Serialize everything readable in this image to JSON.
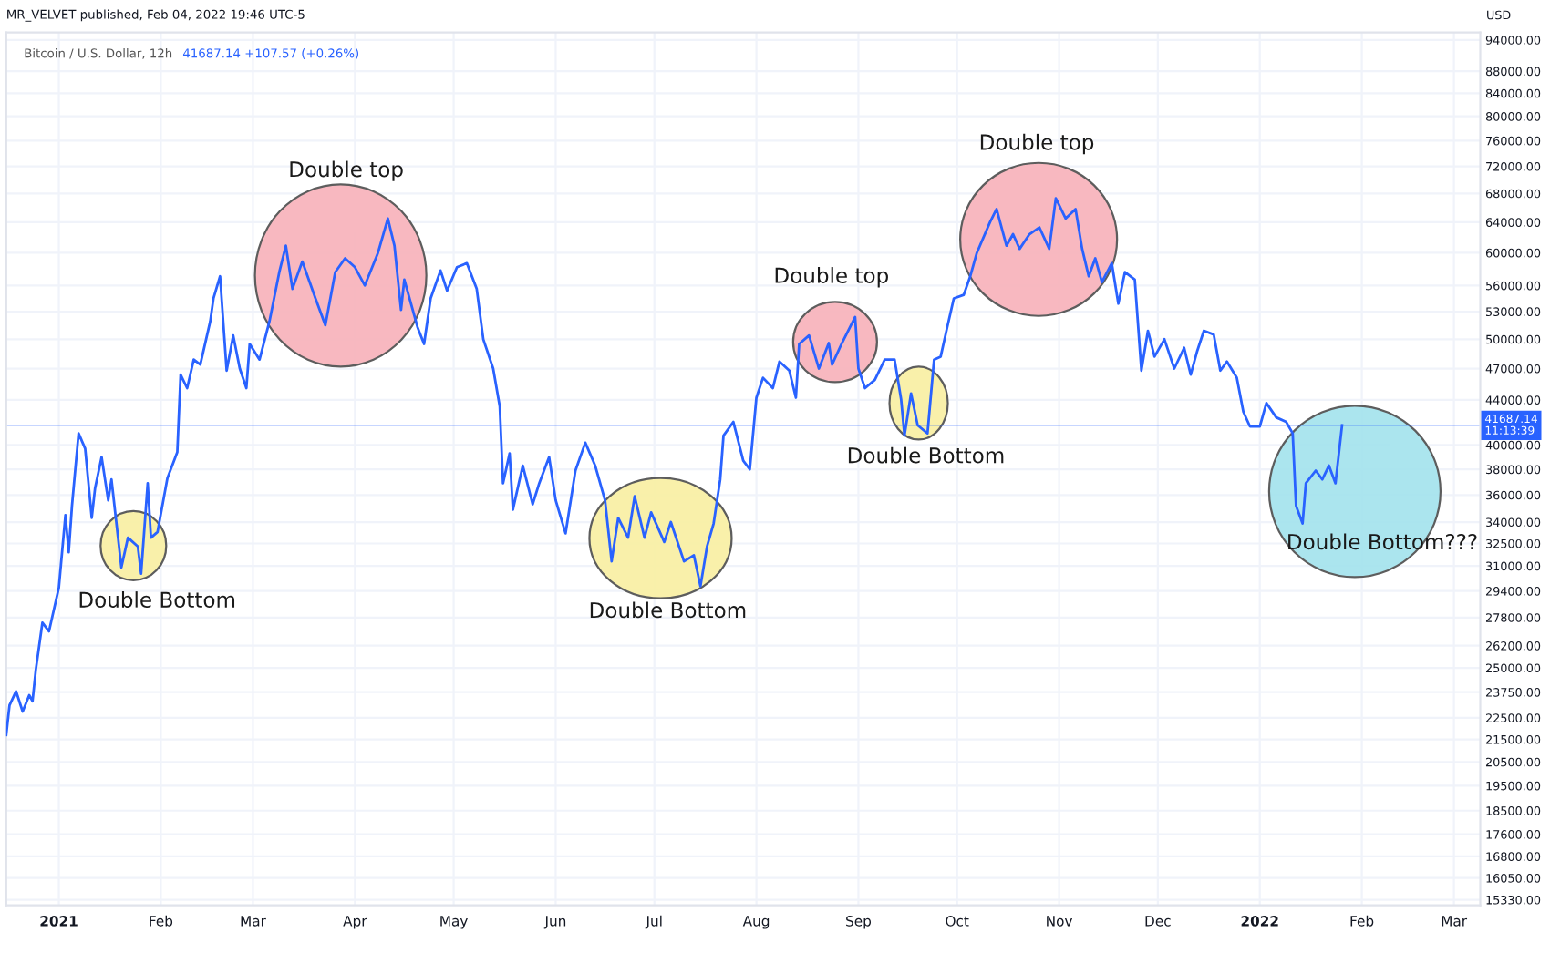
{
  "chart_data": {
    "type": "line",
    "title": "MR_VELVET published, Feb 04, 2022 19:46 UTC-5",
    "subtitle": "Bitcoin / U.S. Dollar, 12h",
    "annotations": [
      "41687.14 +107.57 (+0.26%)",
      "USD",
      "Double Bottom",
      "Double top",
      "Double Bottom",
      "Double top",
      "Double Bottom",
      "Double top",
      "Double Bottom???"
    ],
    "x": [
      "2020-12-16",
      "2020-12-17",
      "2020-12-19",
      "2020-12-21",
      "2020-12-23",
      "2020-12-24",
      "2020-12-25",
      "2020-12-27",
      "2020-12-29",
      "2021-01-01",
      "2021-01-03",
      "2021-01-04",
      "2021-01-05",
      "2021-01-07",
      "2021-01-09",
      "2021-01-11",
      "2021-01-12",
      "2021-01-14",
      "2021-01-16",
      "2021-01-17",
      "2021-01-20",
      "2021-01-22",
      "2021-01-25",
      "2021-01-26",
      "2021-01-28",
      "2021-01-29",
      "2021-01-31",
      "2021-02-03",
      "2021-02-06",
      "2021-02-07",
      "2021-02-09",
      "2021-02-11",
      "2021-02-13",
      "2021-02-16",
      "2021-02-17",
      "2021-02-19",
      "2021-02-21",
      "2021-02-23",
      "2021-02-25",
      "2021-02-27",
      "2021-02-28",
      "2021-03-03",
      "2021-03-06",
      "2021-03-09",
      "2021-03-11",
      "2021-03-13",
      "2021-03-16",
      "2021-03-20",
      "2021-03-23",
      "2021-03-26",
      "2021-03-29",
      "2021-04-01",
      "2021-04-04",
      "2021-04-08",
      "2021-04-11",
      "2021-04-13",
      "2021-04-15",
      "2021-04-16",
      "2021-04-20",
      "2021-04-22",
      "2021-04-24",
      "2021-04-27",
      "2021-04-29",
      "2021-05-02",
      "2021-05-05",
      "2021-05-08",
      "2021-05-10",
      "2021-05-13",
      "2021-05-15",
      "2021-05-16",
      "2021-05-18",
      "2021-05-19",
      "2021-05-22",
      "2021-05-25",
      "2021-05-27",
      "2021-05-30",
      "2021-06-01",
      "2021-06-04",
      "2021-06-07",
      "2021-06-10",
      "2021-06-13",
      "2021-06-16",
      "2021-06-18",
      "2021-06-20",
      "2021-06-23",
      "2021-06-25",
      "2021-06-28",
      "2021-06-30",
      "2021-07-04",
      "2021-07-06",
      "2021-07-10",
      "2021-07-13",
      "2021-07-15",
      "2021-07-17",
      "2021-07-19",
      "2021-07-21",
      "2021-07-22",
      "2021-07-25",
      "2021-07-28",
      "2021-07-30",
      "2021-08-01",
      "2021-08-03",
      "2021-08-06",
      "2021-08-08",
      "2021-08-11",
      "2021-08-13",
      "2021-08-14",
      "2021-08-17",
      "2021-08-20",
      "2021-08-23",
      "2021-08-24",
      "2021-08-27",
      "2021-08-31",
      "2021-09-01",
      "2021-09-03",
      "2021-09-06",
      "2021-09-09",
      "2021-09-12",
      "2021-09-14",
      "2021-09-15",
      "2021-09-17",
      "2021-09-19",
      "2021-09-22",
      "2021-09-24",
      "2021-09-26",
      "2021-09-28",
      "2021-09-30",
      "2021-10-03",
      "2021-10-05",
      "2021-10-07",
      "2021-10-11",
      "2021-10-13",
      "2021-10-16",
      "2021-10-18",
      "2021-10-20",
      "2021-10-23",
      "2021-10-26",
      "2021-10-29",
      "2021-10-31",
      "2021-11-03",
      "2021-11-06",
      "2021-11-08",
      "2021-11-10",
      "2021-11-12",
      "2021-11-14",
      "2021-11-17",
      "2021-11-19",
      "2021-11-21",
      "2021-11-24",
      "2021-11-26",
      "2021-11-28",
      "2021-11-30",
      "2021-12-03",
      "2021-12-06",
      "2021-12-09",
      "2021-12-11",
      "2021-12-13",
      "2021-12-15",
      "2021-12-18",
      "2021-12-20",
      "2021-12-22",
      "2021-12-25",
      "2021-12-27",
      "2021-12-29",
      "2022-01-01",
      "2022-01-03",
      "2022-01-06",
      "2022-01-09",
      "2022-01-11",
      "2022-01-12",
      "2022-01-14",
      "2022-01-15",
      "2022-01-18",
      "2022-01-20",
      "2022-01-22",
      "2022-01-24",
      "2022-01-26"
    ],
    "series": [
      {
        "color": "#2962ff",
        "values": [
          21700,
          23100,
          23800,
          22800,
          23600,
          23300,
          24900,
          27500,
          27000,
          29600,
          34500,
          31900,
          35200,
          41000,
          39700,
          34300,
          36500,
          39000,
          35600,
          37200,
          30900,
          32900,
          32300,
          30500,
          36900,
          32900,
          33300,
          37300,
          39400,
          46400,
          45100,
          47900,
          47400,
          51900,
          54500,
          57100,
          46800,
          50400,
          47000,
          45100,
          49500,
          47900,
          51900,
          57600,
          60900,
          55600,
          58900,
          54500,
          51500,
          57600,
          59300,
          58200,
          56000,
          60000,
          64500,
          60900,
          53200,
          56700,
          51300,
          49500,
          54500,
          57800,
          55400,
          58200,
          58700,
          55600,
          50000,
          47000,
          43400,
          36900,
          39300,
          34900,
          38300,
          35300,
          36900,
          39000,
          35600,
          33200,
          37900,
          40200,
          38300,
          35600,
          31300,
          34300,
          32900,
          35900,
          32900,
          34700,
          32600,
          34000,
          31300,
          31700,
          29700,
          32300,
          33900,
          37200,
          40800,
          42000,
          38700,
          38000,
          44200,
          46100,
          45100,
          47700,
          46800,
          44200,
          49500,
          50400,
          47000,
          49600,
          47400,
          49600,
          52400,
          47000,
          45100,
          45900,
          47900,
          47900,
          44000,
          40800,
          44600,
          41700,
          41000,
          47900,
          48200,
          51300,
          54500,
          54900,
          57100,
          60000,
          64000,
          65800,
          60900,
          62400,
          60500,
          62400,
          63300,
          60500,
          67300,
          64500,
          65800,
          60500,
          57100,
          59300,
          56400,
          58700,
          53900,
          57600,
          56700,
          46800,
          50900,
          48200,
          50000,
          47000,
          49100,
          46400,
          48800,
          50900,
          50500,
          46800,
          47700,
          46100,
          42900,
          41600,
          41600,
          43700,
          42400,
          42000,
          41000,
          35200,
          33900,
          36900,
          37900,
          37200,
          38300,
          36900,
          41700
        ]
      }
    ],
    "xlim": [
      "2020-12-16",
      "2022-03-09"
    ],
    "xticks": [
      {
        "value": "2021-01-01",
        "label": "2021"
      },
      {
        "value": "2021-02-01",
        "label": "Feb"
      },
      {
        "value": "2021-03-01",
        "label": "Mar"
      },
      {
        "value": "2021-04-01",
        "label": "Apr"
      },
      {
        "value": "2021-05-01",
        "label": "May"
      },
      {
        "value": "2021-06-01",
        "label": "Jun"
      },
      {
        "value": "2021-07-01",
        "label": "Jul"
      },
      {
        "value": "2021-08-01",
        "label": "Aug"
      },
      {
        "value": "2021-09-01",
        "label": "Sep"
      },
      {
        "value": "2021-10-01",
        "label": "Oct"
      },
      {
        "value": "2021-11-01",
        "label": "Nov"
      },
      {
        "value": "2021-12-01",
        "label": "Dec"
      },
      {
        "value": "2022-01-01",
        "label": "2022"
      },
      {
        "value": "2022-02-01",
        "label": "Feb"
      },
      {
        "value": "2022-03-01",
        "label": "Mar"
      }
    ],
    "log": "y",
    "ylim": [
      15150,
      95500
    ],
    "yticks": [
      {
        "value": 15330,
        "label": "15330.00"
      },
      {
        "value": 16050,
        "label": "16050.00"
      },
      {
        "value": 16800,
        "label": "16800.00"
      },
      {
        "value": 17600,
        "label": "17600.00"
      },
      {
        "value": 18500,
        "label": "18500.00"
      },
      {
        "value": 19500,
        "label": "19500.00"
      },
      {
        "value": 20500,
        "label": "20500.00"
      },
      {
        "value": 21500,
        "label": "21500.00"
      },
      {
        "value": 22500,
        "label": "22500.00"
      },
      {
        "value": 23750,
        "label": "23750.00"
      },
      {
        "value": 25000,
        "label": "25000.00"
      },
      {
        "value": 26200,
        "label": "26200.00"
      },
      {
        "value": 27800,
        "label": "27800.00"
      },
      {
        "value": 29400,
        "label": "29400.00"
      },
      {
        "value": 31000,
        "label": "31000.00"
      },
      {
        "value": 32500,
        "label": "32500.00"
      },
      {
        "value": 34000,
        "label": "34000.00"
      },
      {
        "value": 36000,
        "label": "36000.00"
      },
      {
        "value": 38000,
        "label": "38000.00"
      },
      {
        "value": 40000,
        "label": "40000.00"
      },
      {
        "value": 44000,
        "label": "44000.00"
      },
      {
        "value": 47000,
        "label": "47000.00"
      },
      {
        "value": 50000,
        "label": "50000.00"
      },
      {
        "value": 53000,
        "label": "53000.00"
      },
      {
        "value": 56000,
        "label": "56000.00"
      },
      {
        "value": 60000,
        "label": "60000.00"
      },
      {
        "value": 64000,
        "label": "64000.00"
      },
      {
        "value": 68000,
        "label": "68000.00"
      },
      {
        "value": 72000,
        "label": "72000.00"
      },
      {
        "value": 76000,
        "label": "76000.00"
      },
      {
        "value": 80000,
        "label": "80000.00"
      },
      {
        "value": 84000,
        "label": "84000.00"
      },
      {
        "value": 88000,
        "label": "88000.00"
      },
      {
        "value": 94000,
        "label": "94000.00"
      }
    ],
    "ref_lines": [
      {
        "axis": "y",
        "value": 41687.14,
        "label": "41687.14\n11:13:39",
        "color": "#2962ff"
      }
    ],
    "grid": true,
    "legend": false,
    "marker": "none",
    "line_style": "solid"
  }
}
